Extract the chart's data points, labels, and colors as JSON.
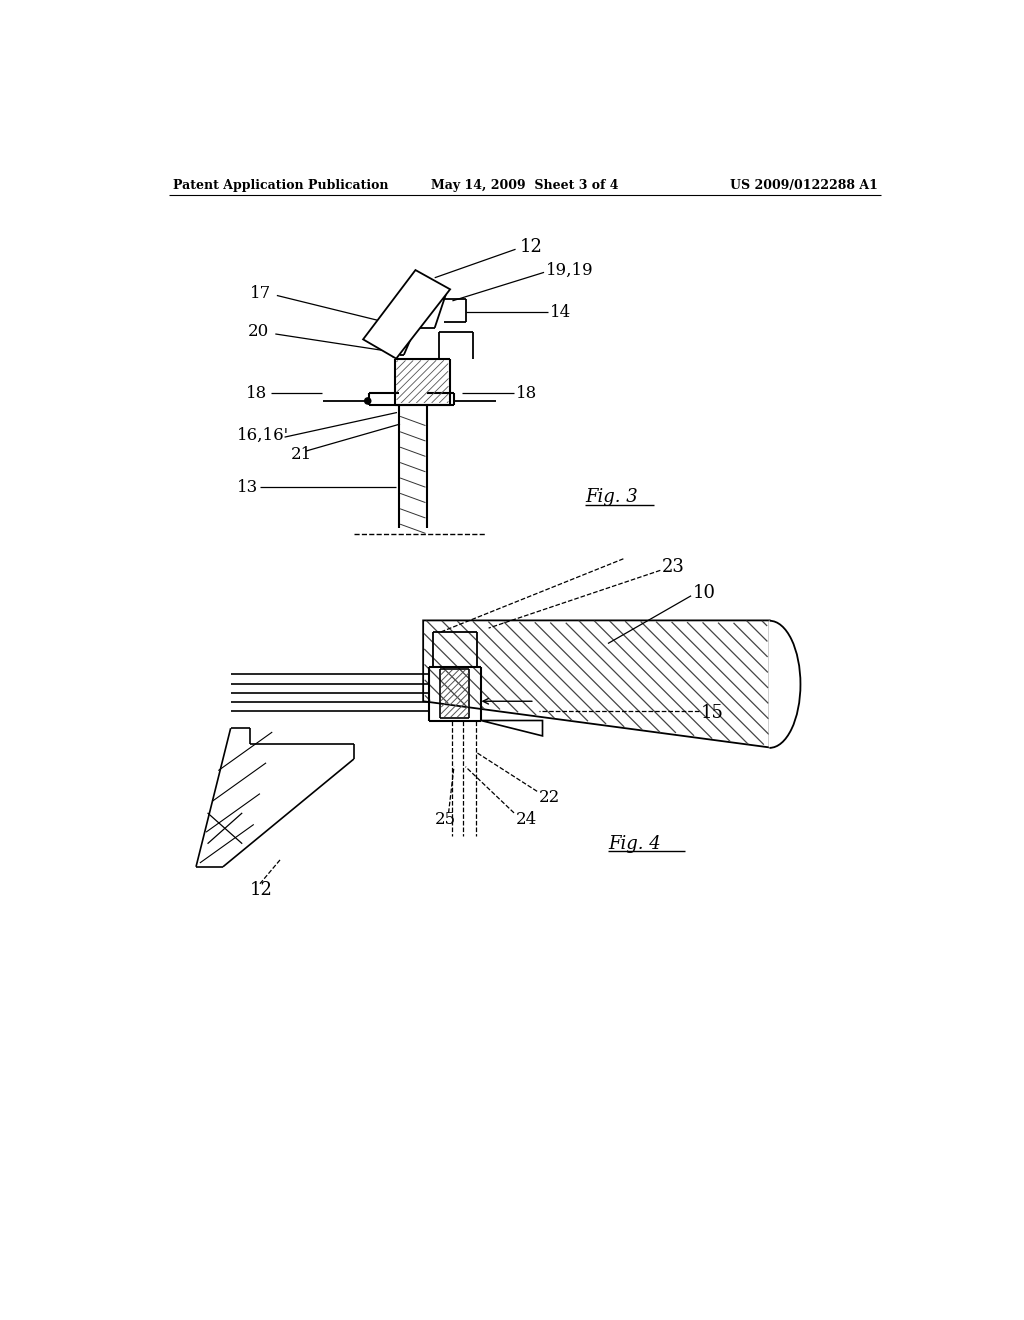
{
  "bg_color": "#ffffff",
  "header_left": "Patent Application Publication",
  "header_center": "May 14, 2009  Sheet 3 of 4",
  "header_right": "US 2009/0122288 A1",
  "fig3_label": "Fig. 3",
  "fig4_label": "Fig. 4"
}
